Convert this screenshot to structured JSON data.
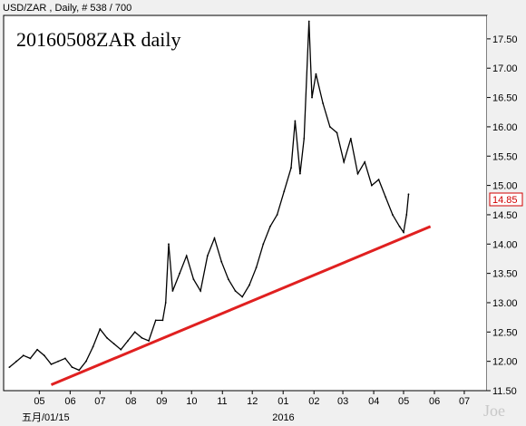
{
  "header": {
    "symbol_info": "USD/ZAR , Daily, # 538 / 700"
  },
  "watermark": "Joe",
  "colors": {
    "price": "#000000",
    "trendline": "#e02020",
    "last_price": "#d00000",
    "plot_bg": "#ffffff"
  },
  "chart_data": {
    "type": "line",
    "title": "20160508ZAR daily",
    "xlabel": "",
    "ylabel": "",
    "grid": false,
    "x_tick_labels": [
      "05",
      "06",
      "07",
      "08",
      "09",
      "10",
      "11",
      "12",
      "01",
      "02",
      "03",
      "04",
      "05",
      "06",
      "07"
    ],
    "x_sub_labels": [
      "五月/01/15",
      "2016"
    ],
    "y_tick_labels": [
      "11.50",
      "12.00",
      "12.50",
      "13.00",
      "13.50",
      "14.00",
      "14.50",
      "15.00",
      "15.50",
      "16.00",
      "16.50",
      "17.00",
      "17.50"
    ],
    "ylim": [
      11.5,
      17.9
    ],
    "last_price": "14.85",
    "series": [
      {
        "values": [
          {
            "date": "2015-04-01",
            "y": 11.9
          },
          {
            "date": "2015-04-08",
            "y": 12.0
          },
          {
            "date": "2015-04-15",
            "y": 12.1
          },
          {
            "date": "2015-04-22",
            "y": 12.05
          },
          {
            "date": "2015-04-29",
            "y": 12.2
          },
          {
            "date": "2015-05-06",
            "y": 12.1
          },
          {
            "date": "2015-05-13",
            "y": 11.95
          },
          {
            "date": "2015-05-20",
            "y": 12.0
          },
          {
            "date": "2015-05-27",
            "y": 12.05
          },
          {
            "date": "2015-06-03",
            "y": 11.9
          },
          {
            "date": "2015-06-10",
            "y": 11.85
          },
          {
            "date": "2015-06-17",
            "y": 12.0
          },
          {
            "date": "2015-06-24",
            "y": 12.25
          },
          {
            "date": "2015-07-01",
            "y": 12.55
          },
          {
            "date": "2015-07-08",
            "y": 12.4
          },
          {
            "date": "2015-07-15",
            "y": 12.3
          },
          {
            "date": "2015-07-22",
            "y": 12.2
          },
          {
            "date": "2015-07-29",
            "y": 12.35
          },
          {
            "date": "2015-08-05",
            "y": 12.5
          },
          {
            "date": "2015-08-12",
            "y": 12.4
          },
          {
            "date": "2015-08-19",
            "y": 12.35
          },
          {
            "date": "2015-08-26",
            "y": 12.7
          },
          {
            "date": "2015-09-02",
            "y": 12.7
          },
          {
            "date": "2015-09-05",
            "y": 13.0
          },
          {
            "date": "2015-09-08",
            "y": 14.0
          },
          {
            "date": "2015-09-12",
            "y": 13.2
          },
          {
            "date": "2015-09-19",
            "y": 13.5
          },
          {
            "date": "2015-09-26",
            "y": 13.8
          },
          {
            "date": "2015-10-03",
            "y": 13.4
          },
          {
            "date": "2015-10-10",
            "y": 13.2
          },
          {
            "date": "2015-10-17",
            "y": 13.8
          },
          {
            "date": "2015-10-24",
            "y": 14.1
          },
          {
            "date": "2015-10-31",
            "y": 13.7
          },
          {
            "date": "2015-11-07",
            "y": 13.4
          },
          {
            "date": "2015-11-14",
            "y": 13.2
          },
          {
            "date": "2015-11-21",
            "y": 13.1
          },
          {
            "date": "2015-11-28",
            "y": 13.3
          },
          {
            "date": "2015-12-05",
            "y": 13.6
          },
          {
            "date": "2015-12-12",
            "y": 14.0
          },
          {
            "date": "2015-12-19",
            "y": 14.3
          },
          {
            "date": "2015-12-26",
            "y": 14.5
          },
          {
            "date": "2016-01-02",
            "y": 14.9
          },
          {
            "date": "2016-01-09",
            "y": 15.3
          },
          {
            "date": "2016-01-13",
            "y": 16.1
          },
          {
            "date": "2016-01-18",
            "y": 15.2
          },
          {
            "date": "2016-01-22",
            "y": 15.8
          },
          {
            "date": "2016-01-27",
            "y": 17.8
          },
          {
            "date": "2016-01-30",
            "y": 16.5
          },
          {
            "date": "2016-02-03",
            "y": 16.9
          },
          {
            "date": "2016-02-10",
            "y": 16.4
          },
          {
            "date": "2016-02-17",
            "y": 16.0
          },
          {
            "date": "2016-02-24",
            "y": 15.9
          },
          {
            "date": "2016-03-02",
            "y": 15.4
          },
          {
            "date": "2016-03-09",
            "y": 15.8
          },
          {
            "date": "2016-03-16",
            "y": 15.2
          },
          {
            "date": "2016-03-23",
            "y": 15.4
          },
          {
            "date": "2016-03-30",
            "y": 15.0
          },
          {
            "date": "2016-04-06",
            "y": 15.1
          },
          {
            "date": "2016-04-13",
            "y": 14.8
          },
          {
            "date": "2016-04-20",
            "y": 14.5
          },
          {
            "date": "2016-04-27",
            "y": 14.3
          },
          {
            "date": "2016-05-01",
            "y": 14.2
          },
          {
            "date": "2016-05-04",
            "y": 14.5
          },
          {
            "date": "2016-05-06",
            "y": 14.85
          }
        ]
      }
    ],
    "trendline": [
      {
        "date": "2015-05-13",
        "y": 11.6
      },
      {
        "date": "2016-05-28",
        "y": 14.3
      }
    ]
  }
}
